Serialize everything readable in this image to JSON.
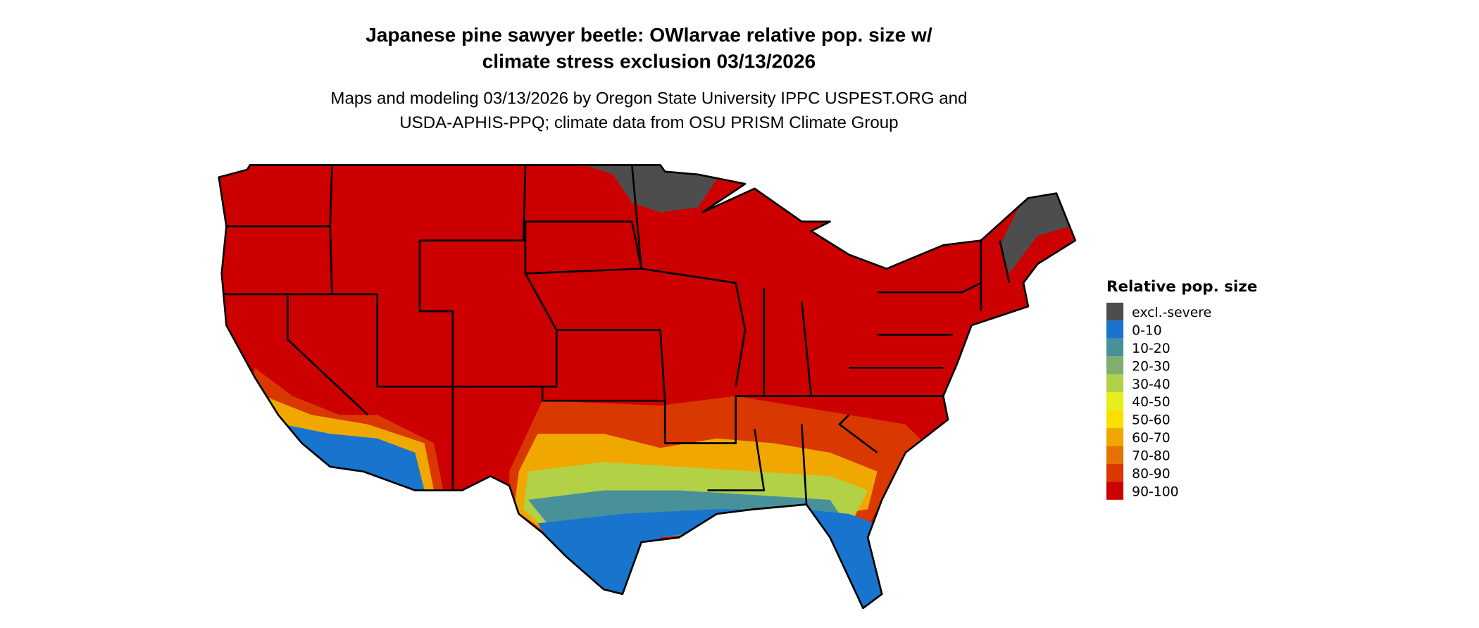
{
  "title_line1": "Japanese pine sawyer beetle: OWlarvae relative pop. size w/",
  "title_line2": "climate stress exclusion 03/13/2026",
  "subtitle_line1": "Maps and modeling 03/13/2026 by Oregon State University IPPC USPEST.ORG and",
  "subtitle_line2": "USDA-APHIS-PPQ; climate data from OSU PRISM Climate Group",
  "legend": {
    "title": "Relative pop. size",
    "items": [
      {
        "label": "excl.-severe",
        "color": "#4d4d4d"
      },
      {
        "label": "0-10",
        "color": "#1874cd"
      },
      {
        "label": "10-20",
        "color": "#48919b"
      },
      {
        "label": "20-30",
        "color": "#7fae6e"
      },
      {
        "label": "30-40",
        "color": "#b3d147"
      },
      {
        "label": "40-50",
        "color": "#e5f01a"
      },
      {
        "label": "50-60",
        "color": "#f9e000"
      },
      {
        "label": "60-70",
        "color": "#f0a800"
      },
      {
        "label": "70-80",
        "color": "#e57200"
      },
      {
        "label": "80-90",
        "color": "#d93800"
      },
      {
        "label": "90-100",
        "color": "#cc0000"
      }
    ]
  }
}
